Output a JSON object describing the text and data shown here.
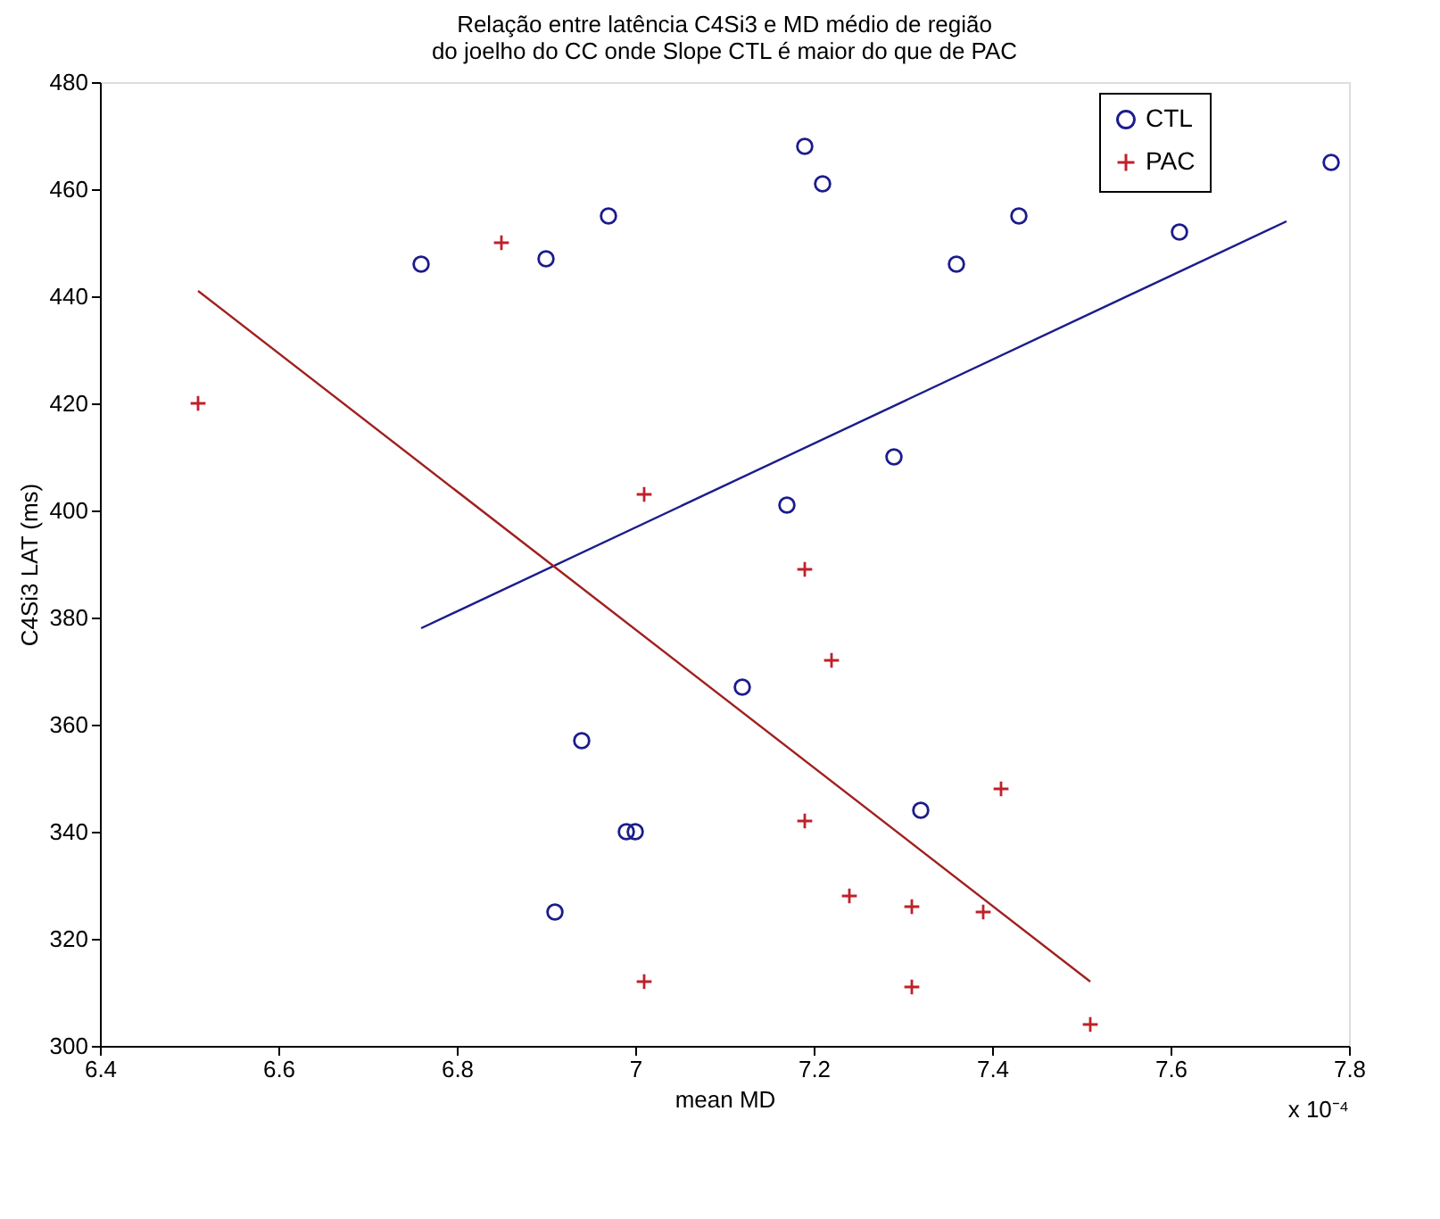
{
  "chart_data": {
    "type": "scatter",
    "title": "Relação entre latência C4Si3 e MD médio de região\ndo joelho do CC onde Slope CTL é maior do que de PAC",
    "xlabel": "mean MD",
    "ylabel": "C4Si3 LAT (ms)",
    "annotations": [
      "x 10⁻⁴"
    ],
    "series": [
      {
        "name": "CTL",
        "color": "#1c1c8c",
        "marker": "circle",
        "x": [
          6.76,
          6.9,
          6.97,
          7.19,
          7.21,
          7.43,
          7.36,
          7.61,
          7.78,
          7.29,
          7.17,
          6.94,
          6.99,
          7.0,
          6.91,
          7.12,
          7.32
        ],
        "values": [
          446,
          447,
          455,
          468,
          461,
          455,
          446,
          452,
          465,
          410,
          401,
          357,
          340,
          340,
          325,
          367,
          344
        ]
      },
      {
        "name": "PAC",
        "color": "#c0202a",
        "marker": "cross",
        "x": [
          6.51,
          6.85,
          7.01,
          7.19,
          7.01,
          7.22,
          7.41,
          7.19,
          7.24,
          7.31,
          7.39,
          7.31,
          7.51
        ],
        "values": [
          420,
          450,
          403,
          389,
          312,
          372,
          348,
          342,
          328,
          326,
          325,
          311,
          304
        ]
      },
      {
        "type": "line",
        "color": "#1c1c8c",
        "line_style": "solid",
        "x": [
          6.76,
          7.73
        ],
        "values": [
          378,
          454
        ]
      },
      {
        "type": "line",
        "color": "#a02020",
        "line_style": "solid",
        "x": [
          6.51,
          7.51
        ],
        "values": [
          441,
          312
        ]
      }
    ],
    "xlim": [
      6.4,
      7.8
    ],
    "xticks": [
      6.4,
      6.6,
      6.8,
      7,
      7.2,
      7.4,
      7.6,
      7.8
    ],
    "ylim": [
      300,
      480
    ],
    "yticks": [
      300,
      320,
      340,
      360,
      380,
      400,
      420,
      440,
      460,
      480
    ],
    "grid": false,
    "legend": "top right"
  }
}
